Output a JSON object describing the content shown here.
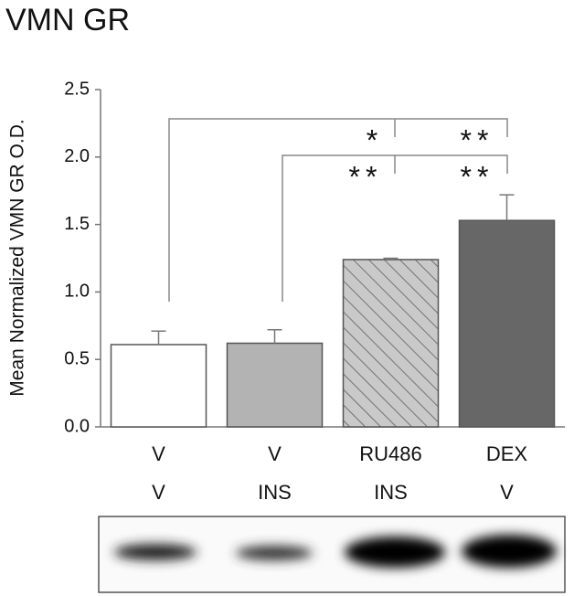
{
  "chart_data": {
    "type": "bar",
    "title": "VMN GR",
    "ylabel": "Mean Normalized VMN GR O.D.",
    "categories": [
      [
        "V",
        "V"
      ],
      [
        "V",
        "INS"
      ],
      [
        "RU486",
        "INS"
      ],
      [
        "DEX",
        "V"
      ]
    ],
    "values": [
      0.61,
      0.62,
      1.24,
      1.53
    ],
    "errors": [
      0.1,
      0.1,
      0.01,
      0.19
    ],
    "colors": [
      "#ffffff",
      "#b3b3b3",
      "#c9c9c9",
      "#676767"
    ],
    "hatch": [
      false,
      false,
      true,
      false
    ],
    "ylim": [
      0,
      2.5
    ],
    "yticks": [
      {
        "value": 0,
        "label": "0.0"
      },
      0.5,
      {
        "value": 1,
        "label": "1.0"
      },
      1.5,
      {
        "value": 2,
        "label": "2.0"
      },
      2.5
    ],
    "annotations": [
      "*",
      "**",
      "**",
      "**"
    ]
  }
}
